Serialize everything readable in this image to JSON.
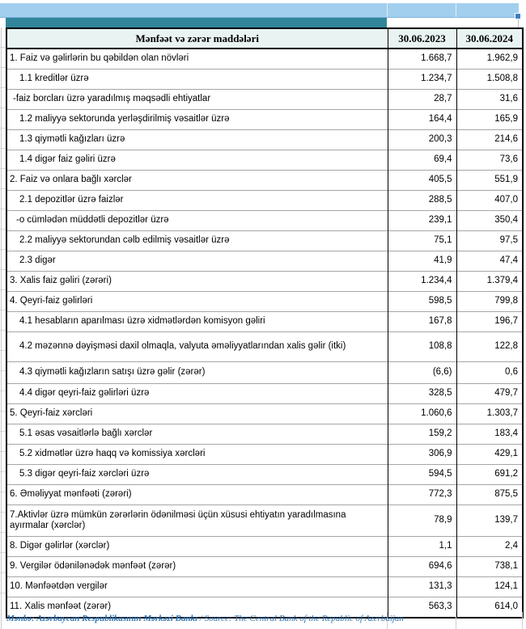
{
  "table": {
    "header": {
      "items": "Mənfəət və zərər maddələri",
      "date_2023": "30.06.2023",
      "date_2024": "30.06.2024"
    },
    "rows": [
      {
        "label": "1. Faiz və gəlirlərin bu qəbildən olan növləri",
        "v2023": "1.668,7",
        "v2024": "1.962,9",
        "indent": 0
      },
      {
        "label": "1.1 kreditlər üzrə",
        "v2023": "1.234,7",
        "v2024": "1.508,8",
        "indent": 1
      },
      {
        "label": "-faiz borcları üzrə yaradılmış məqsədli ehtiyatlar",
        "v2023": "28,7",
        "v2024": "31,6",
        "indent": 2
      },
      {
        "label": "1.2 maliyyə sektorunda yerləşdirilmiş vəsaitlər üzrə",
        "v2023": "164,4",
        "v2024": "165,9",
        "indent": 1
      },
      {
        "label": "1.3 qiymətli kağızları üzrə",
        "v2023": "200,3",
        "v2024": "214,6",
        "indent": 1
      },
      {
        "label": "1.4 digər faiz gəliri üzrə",
        "v2023": "69,4",
        "v2024": "73,6",
        "indent": 1
      },
      {
        "label": "2. Faiz və onlara bağlı xərclər",
        "v2023": "405,5",
        "v2024": "551,9",
        "indent": 0
      },
      {
        "label": "2.1 depozitlər üzrə faizlər",
        "v2023": "288,5",
        "v2024": "407,0",
        "indent": 1
      },
      {
        "label": "-o cümlədən müddətli depozitlər üzrə",
        "v2023": "239,1",
        "v2024": "350,4",
        "indent": 3
      },
      {
        "label": "2.2 maliyyə sektorundan cəlb edilmiş vəsaitlər üzrə",
        "v2023": "75,1",
        "v2024": "97,5",
        "indent": 1
      },
      {
        "label": "2.3 digər",
        "v2023": "41,9",
        "v2024": "47,4",
        "indent": 1
      },
      {
        "label": "3. Xalis faiz gəliri (zərəri)",
        "v2023": "1.234,4",
        "v2024": "1.379,4",
        "indent": 0
      },
      {
        "label": "4. Qeyri-faiz gəlirləri",
        "v2023": "598,5",
        "v2024": "799,8",
        "indent": 0
      },
      {
        "label": "4.1 hesabların aparılması üzrə xidmətlərdən komisyon gəliri",
        "v2023": "167,8",
        "v2024": "196,7",
        "indent": 1
      },
      {
        "label": "4.2 məzənnə dəyişməsi daxil olmaqla, valyuta əməliyyatlarından xalis gəlir (itki)",
        "v2023": "108,8",
        "v2024": "122,8",
        "indent": 1
      },
      {
        "label": "4.3 qiymətli kağızların satışı üzrə gəlir (zərər)",
        "v2023": "(6,6)",
        "v2024": "0,6",
        "indent": 1
      },
      {
        "label": "4.4 digər qeyri-faiz gəlirləri üzrə",
        "v2023": "328,5",
        "v2024": "479,7",
        "indent": 1
      },
      {
        "label": "5. Qeyri-faiz xərcləri",
        "v2023": "1.060,6",
        "v2024": "1.303,7",
        "indent": 0
      },
      {
        "label": "5.1 əsas vəsaitlərlə bağlı xərclər",
        "v2023": "159,2",
        "v2024": "183,4",
        "indent": 1
      },
      {
        "label": "5.2 xidmətlər üzrə haqq və komissiya xərcləri",
        "v2023": "306,9",
        "v2024": "429,1",
        "indent": 1
      },
      {
        "label": "5.3 digər qeyri-faiz xərcləri üzrə",
        "v2023": "594,5",
        "v2024": "691,2",
        "indent": 1
      },
      {
        "label": "6. Əməliyyat mənfəəti (zərəri)",
        "v2023": "772,3",
        "v2024": "875,5",
        "indent": 0
      },
      {
        "label": "7.Aktivlər üzrə mümkün zərərlərin ödənilməsi üçün xüsusi ehtiyatın yaradılmasına ayırmalar (xərclər)",
        "v2023": "78,9",
        "v2024": "139,7",
        "indent": 0
      },
      {
        "label": "8. Digər gəlirlər (xərclər)",
        "v2023": "1,1",
        "v2024": "2,4",
        "indent": 0
      },
      {
        "label": "9. Vergilər ödənilənədək mənfəət (zərər)",
        "v2023": "694,6",
        "v2024": "738,1",
        "indent": 0
      },
      {
        "label": "10. Mənfəətdən vergilər",
        "v2023": "131,3",
        "v2024": "124,1",
        "indent": 0
      },
      {
        "label": "11. Xalis mənfəət (zərər)",
        "v2023": "563,3",
        "v2024": "614,0",
        "indent": 0
      }
    ]
  },
  "footer": {
    "source_az": "Mənbə: Azərbaycan Respublikasının Mərkəzi Bankı",
    "separator": " / ",
    "source_en": "Source: The Central Bank of the Republic of Azerbaijan"
  },
  "colors": {
    "top_bar": "#A3CFEE",
    "teal_bar": "#32859B",
    "header_bg": "#E9F3F2",
    "fill_handle": "#3F7FC1",
    "source_text": "#2E74B5"
  }
}
